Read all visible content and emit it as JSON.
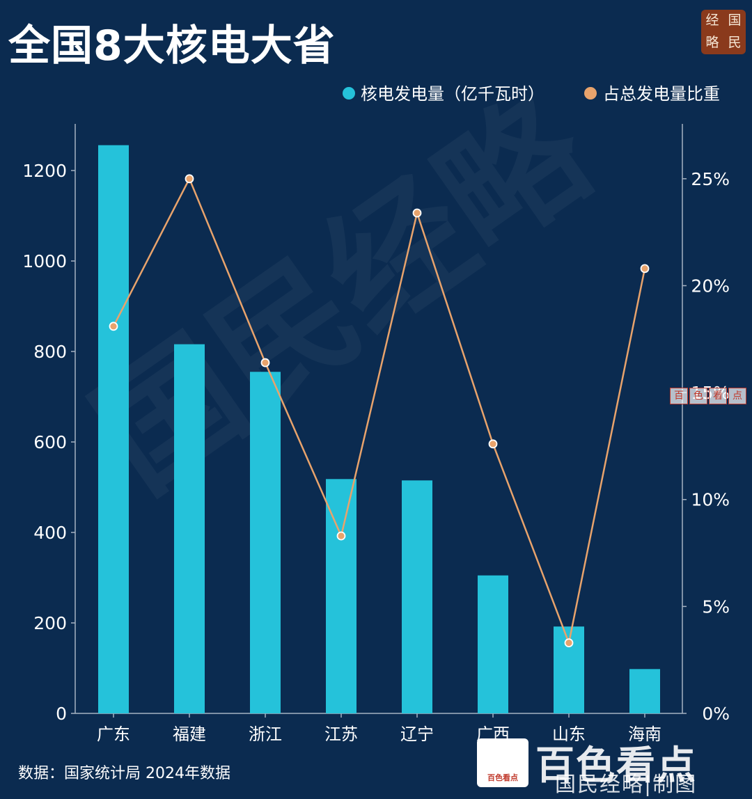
{
  "page_title": "全国8大核电大省",
  "logo_chars": [
    "经",
    "国",
    "略",
    "民"
  ],
  "watermark_text": "国民经略",
  "source": "数据：国家统计局 2024年数据",
  "corner_badge": "百色看点",
  "corner_text": "百色看点",
  "credit": "国民经略|制图",
  "mid_stamp": [
    "百",
    "色",
    "看",
    "点"
  ],
  "colors": {
    "background": "#0b2b50",
    "bar": "#25c2da",
    "line": "#e8a36c",
    "axis": "#a6b3c2"
  },
  "chart_data": {
    "type": "bar",
    "title": "全国8大核电大省",
    "categories": [
      "广东",
      "福建",
      "浙江",
      "江苏",
      "辽宁",
      "广西",
      "山东",
      "海南"
    ],
    "series": [
      {
        "name": "核电发电量（亿千瓦时）",
        "type": "bar",
        "axis": "left",
        "values": [
          1256,
          816,
          755,
          518,
          515,
          305,
          192,
          98
        ]
      },
      {
        "name": "占总发电量比重",
        "type": "line",
        "axis": "right",
        "values": [
          18.1,
          25.0,
          16.4,
          8.3,
          23.4,
          12.6,
          3.3,
          20.8
        ]
      }
    ],
    "left_axis": {
      "ylim": [
        0,
        1300
      ],
      "ticks": [
        0,
        200,
        400,
        600,
        800,
        1000,
        1200
      ],
      "tick_labels": [
        "0",
        "200",
        "400",
        "600",
        "800",
        "1000",
        "1200"
      ]
    },
    "right_axis": {
      "ylim": [
        0,
        27.5
      ],
      "ticks": [
        0,
        5,
        10,
        15,
        20,
        25
      ],
      "tick_labels": [
        "0%",
        "5%",
        "10%",
        "15%",
        "20%",
        "25%"
      ]
    },
    "grid": false,
    "legend_position": "top-right"
  }
}
